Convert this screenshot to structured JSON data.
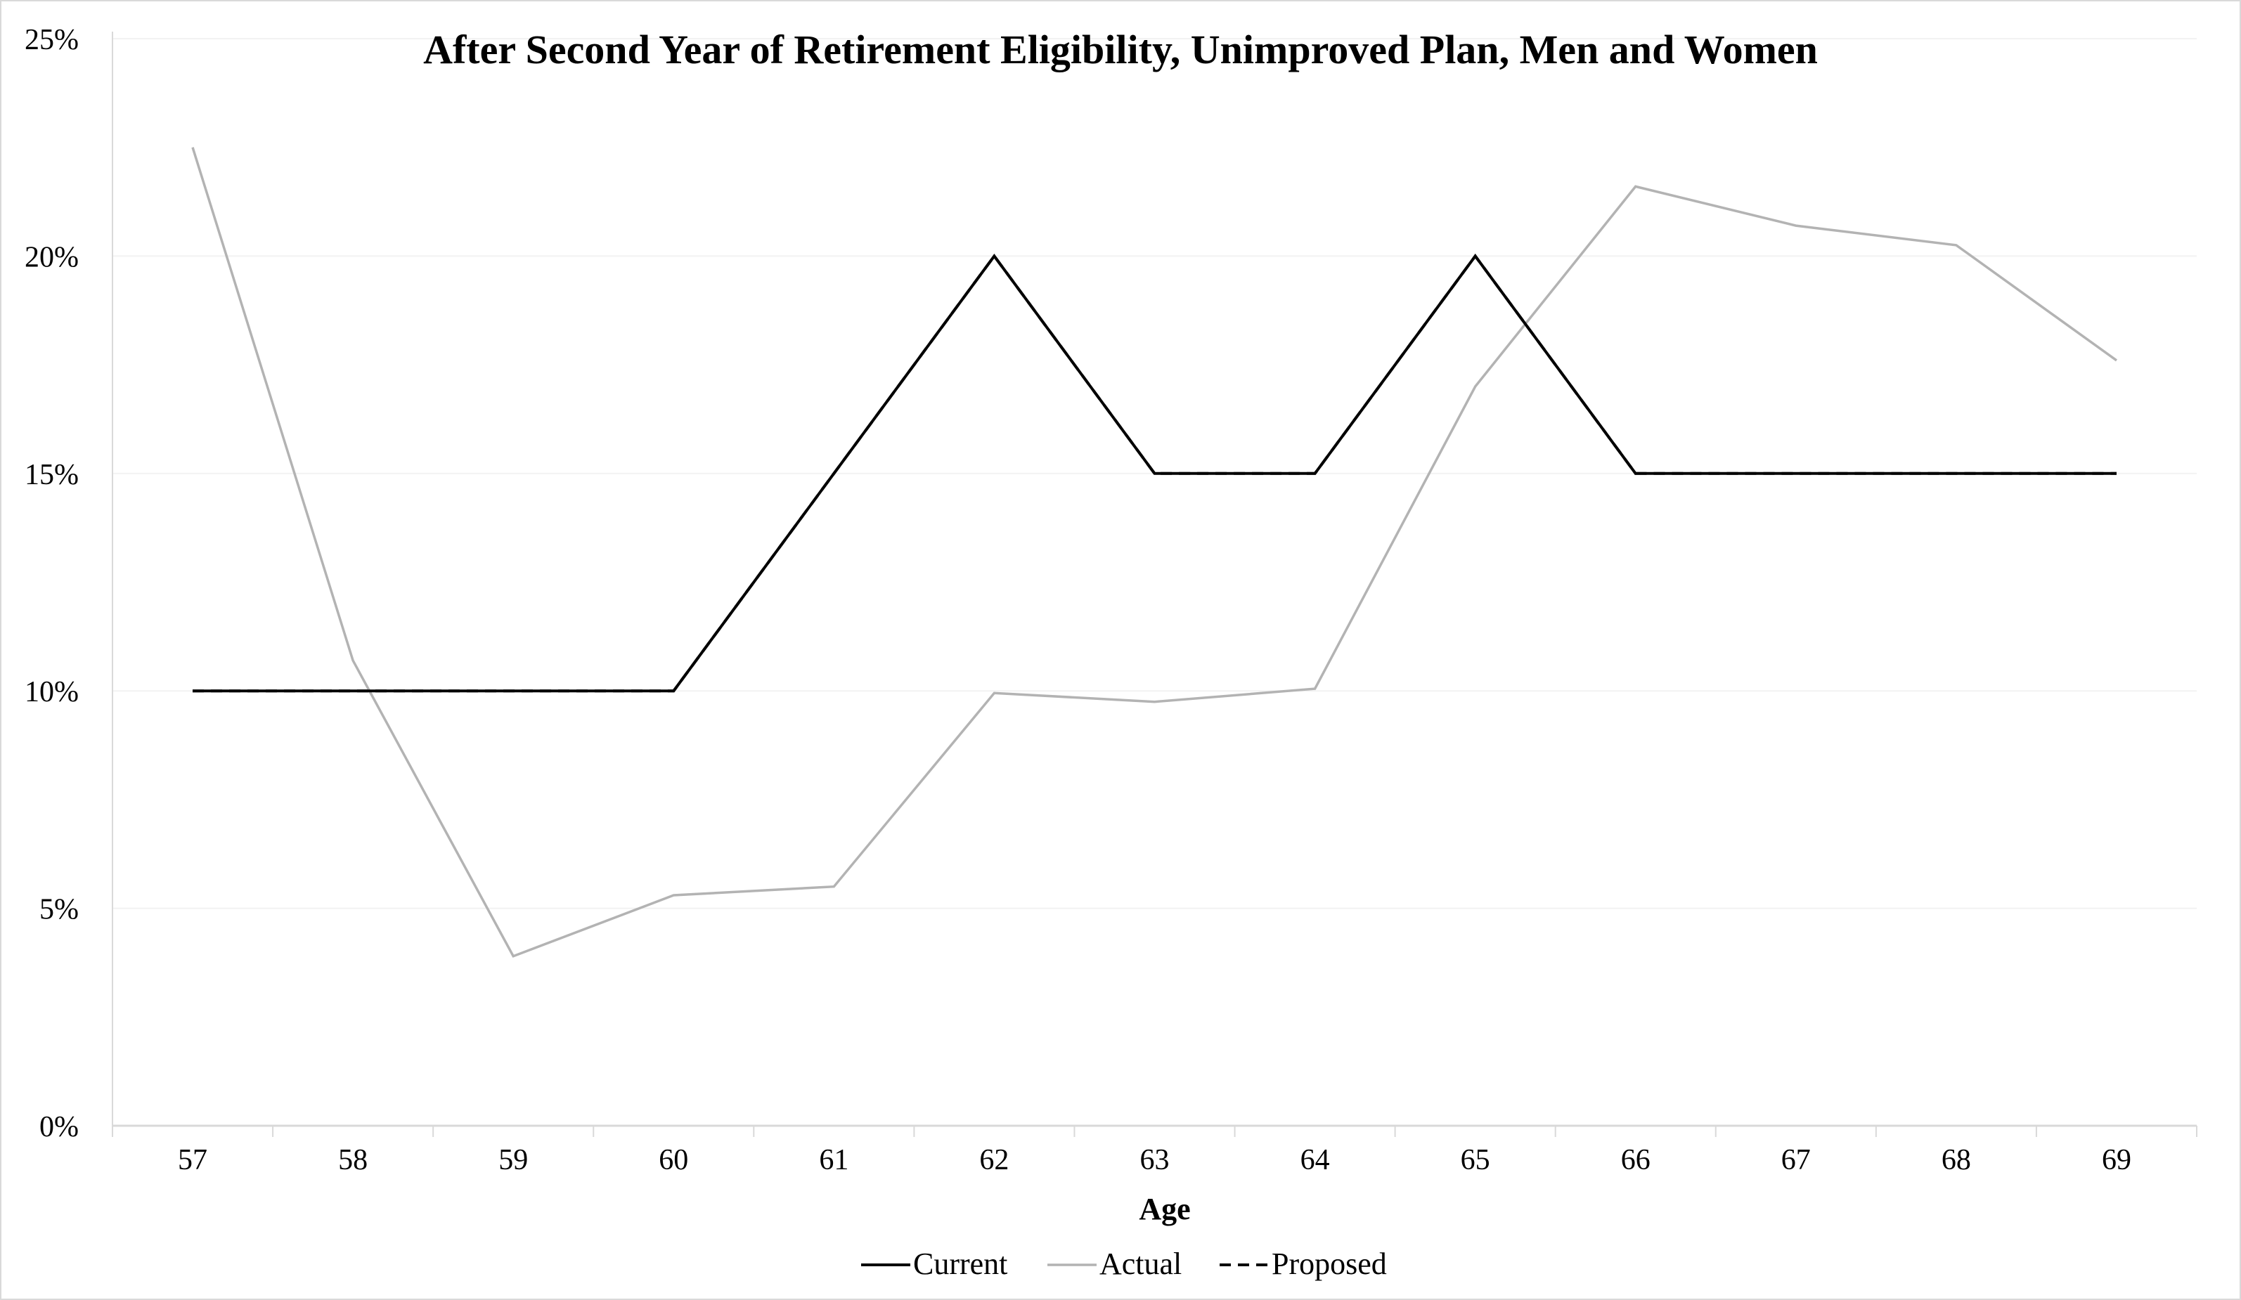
{
  "chart_data": {
    "type": "line",
    "title": "After Second Year of Retirement Eligibility, Unimproved Plan, Men and Women",
    "xlabel": "Age",
    "ylabel": "",
    "categories": [
      "57",
      "58",
      "59",
      "60",
      "61",
      "62",
      "63",
      "64",
      "65",
      "66",
      "67",
      "68",
      "69"
    ],
    "ylim": [
      0,
      25
    ],
    "yticks": [
      0,
      5,
      10,
      15,
      20,
      25
    ],
    "ytick_labels": [
      "0%",
      "5%",
      "10%",
      "15%",
      "20%",
      "25%"
    ],
    "grid": "horizontal",
    "legend_position": "bottom",
    "series": [
      {
        "name": "Current",
        "color": "#000000",
        "style": "solid",
        "values": [
          10,
          10,
          10,
          10,
          15,
          20,
          15,
          15,
          20,
          15,
          15,
          15,
          15
        ]
      },
      {
        "name": "Actual",
        "color": "#b3b3b3",
        "style": "solid",
        "values": [
          22.5,
          10.7,
          3.9,
          5.3,
          5.5,
          9.95,
          9.75,
          10.05,
          17,
          21.6,
          20.7,
          20.25,
          17.6
        ]
      },
      {
        "name": "Proposed",
        "color": "#000000",
        "style": "dashed",
        "values": [
          10,
          10,
          10,
          10,
          15,
          20,
          15,
          15,
          20,
          15,
          15,
          15,
          15
        ]
      }
    ]
  }
}
